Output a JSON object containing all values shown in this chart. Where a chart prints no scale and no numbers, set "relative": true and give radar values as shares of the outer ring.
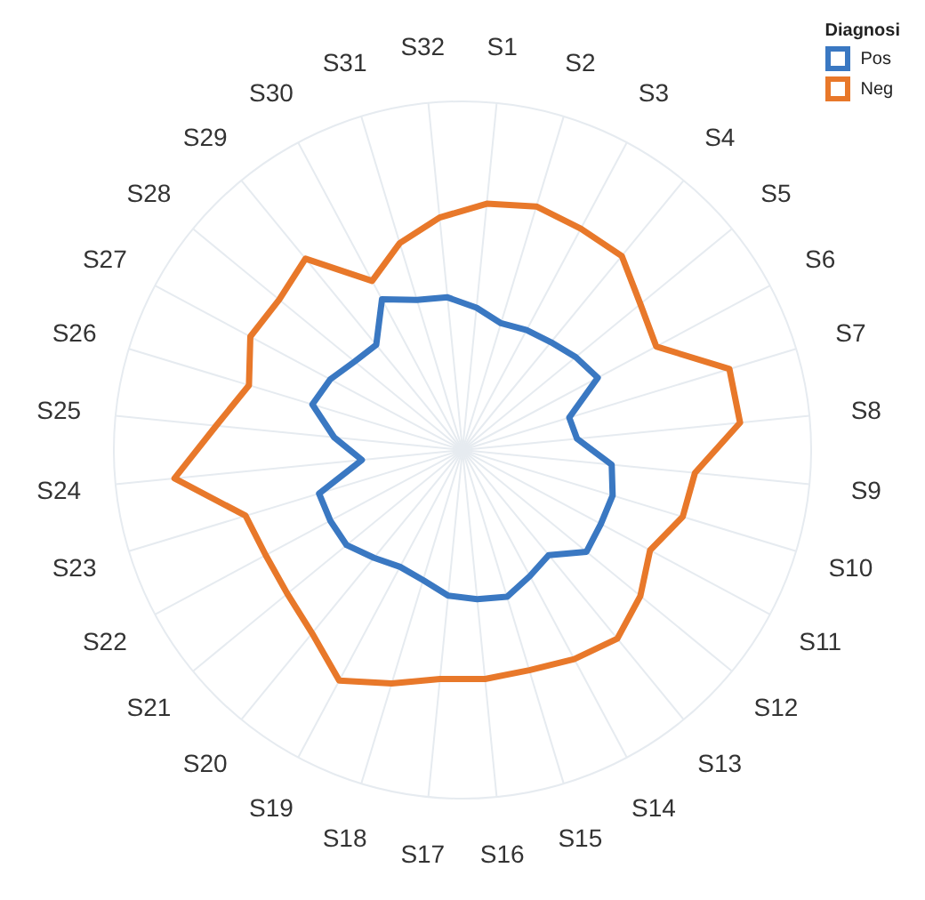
{
  "chart_data": {
    "type": "radar",
    "relative": true,
    "legend_title": "Diagnosi",
    "legend": "top right",
    "grid": true,
    "categories": [
      "S1",
      "S2",
      "S3",
      "S4",
      "S5",
      "S6",
      "S7",
      "S8",
      "S9",
      "S10",
      "S11",
      "S12",
      "S13",
      "S14",
      "S15",
      "S16",
      "S17",
      "S18",
      "S19",
      "S20",
      "S21",
      "S22",
      "S23",
      "S24",
      "S25",
      "S26",
      "S27",
      "S28",
      "S29",
      "S30",
      "S31",
      "S32"
    ],
    "series": [
      {
        "name": "Pos",
        "color": "#3a78c2",
        "values": [
          0.41,
          0.38,
          0.39,
          0.4,
          0.42,
          0.44,
          0.32,
          0.33,
          0.43,
          0.45,
          0.45,
          0.46,
          0.39,
          0.41,
          0.44,
          0.43,
          0.42,
          0.39,
          0.38,
          0.4,
          0.43,
          0.43,
          0.43,
          0.29,
          0.37,
          0.45,
          0.43,
          0.4,
          0.39,
          0.49,
          0.45,
          0.44
        ]
      },
      {
        "name": "Neg",
        "color": "#e8782a",
        "values": [
          0.71,
          0.73,
          0.72,
          0.72,
          0.66,
          0.63,
          0.8,
          0.8,
          0.67,
          0.66,
          0.61,
          0.66,
          0.7,
          0.68,
          0.66,
          0.66,
          0.66,
          0.7,
          0.75,
          0.68,
          0.65,
          0.64,
          0.65,
          0.83,
          0.71,
          0.64,
          0.69,
          0.68,
          0.71,
          0.55,
          0.62,
          0.67
        ]
      }
    ]
  }
}
